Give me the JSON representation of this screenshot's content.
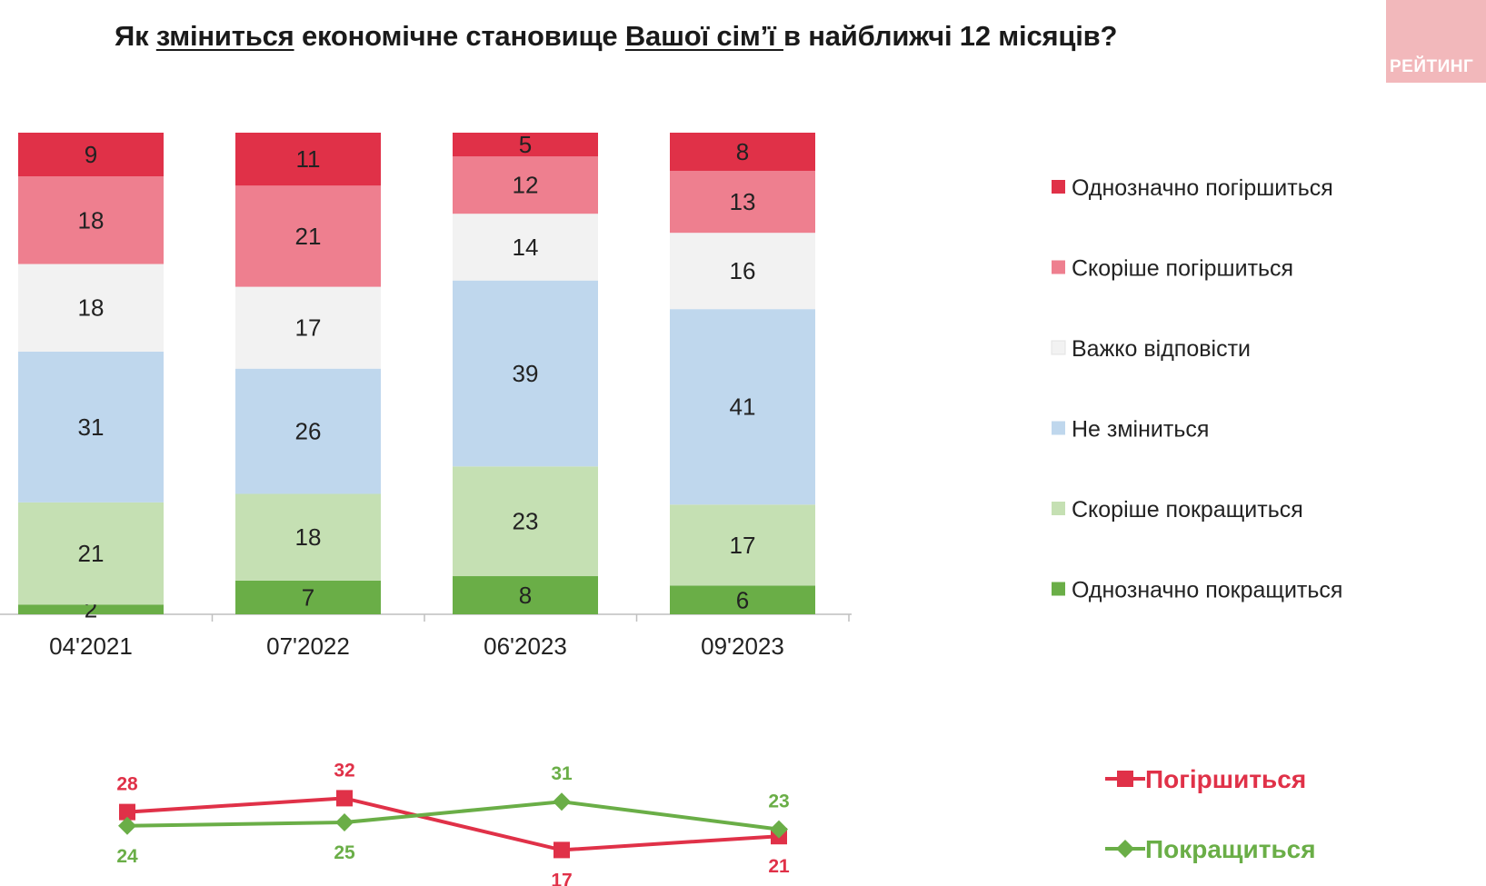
{
  "title": {
    "part1": "Як ",
    "part2": "зміниться",
    "part3": " економічне становище ",
    "part4": "Вашої сім’ї ",
    "part5": "в найближчі 12 місяців?"
  },
  "logo": {
    "text": "РЕЙТИНГ"
  },
  "colors": {
    "definitely_worse": "#e03148",
    "rather_worse": "#ee7f8f",
    "hard_to_say": "#f2f2f2",
    "no_change": "#bfd7ed",
    "rather_better": "#c5e0b3",
    "definitely_better": "#6aae47",
    "line_worse": "#e03148",
    "line_better": "#6aae47"
  },
  "chart_data": [
    {
      "type": "bar",
      "stacked": true,
      "categories": [
        "04'2021",
        "07'2022",
        "06'2023",
        "09'2023"
      ],
      "series": [
        {
          "key": "definitely_better",
          "name": "Однозначно покращиться",
          "values": [
            2,
            7,
            8,
            6
          ]
        },
        {
          "key": "rather_better",
          "name": "Скоріше покращиться",
          "values": [
            21,
            18,
            23,
            17
          ]
        },
        {
          "key": "no_change",
          "name": "Не зміниться",
          "values": [
            31,
            26,
            39,
            41
          ]
        },
        {
          "key": "hard_to_say",
          "name": "Важко відповісти",
          "values": [
            18,
            17,
            14,
            16
          ]
        },
        {
          "key": "rather_worse",
          "name": "Скоріше погіршиться",
          "values": [
            18,
            21,
            12,
            13
          ]
        },
        {
          "key": "definitely_worse",
          "name": "Однозначно погіршиться",
          "values": [
            9,
            11,
            5,
            8
          ]
        }
      ],
      "legend_order": [
        "definitely_worse",
        "rather_worse",
        "hard_to_say",
        "no_change",
        "rather_better",
        "definitely_better"
      ],
      "ylim": [
        0,
        100
      ],
      "legend": "right"
    },
    {
      "type": "line",
      "categories": [
        "04'2021",
        "07'2022",
        "06'2023",
        "09'2023"
      ],
      "series": [
        {
          "key": "line_worse",
          "name": "Погіршиться",
          "values": [
            28,
            32,
            17,
            21
          ],
          "marker": "square"
        },
        {
          "key": "line_better",
          "name": "Покращиться",
          "values": [
            24,
            25,
            31,
            23
          ],
          "marker": "diamond"
        }
      ],
      "ylim": [
        0,
        100
      ],
      "legend": "right"
    }
  ]
}
